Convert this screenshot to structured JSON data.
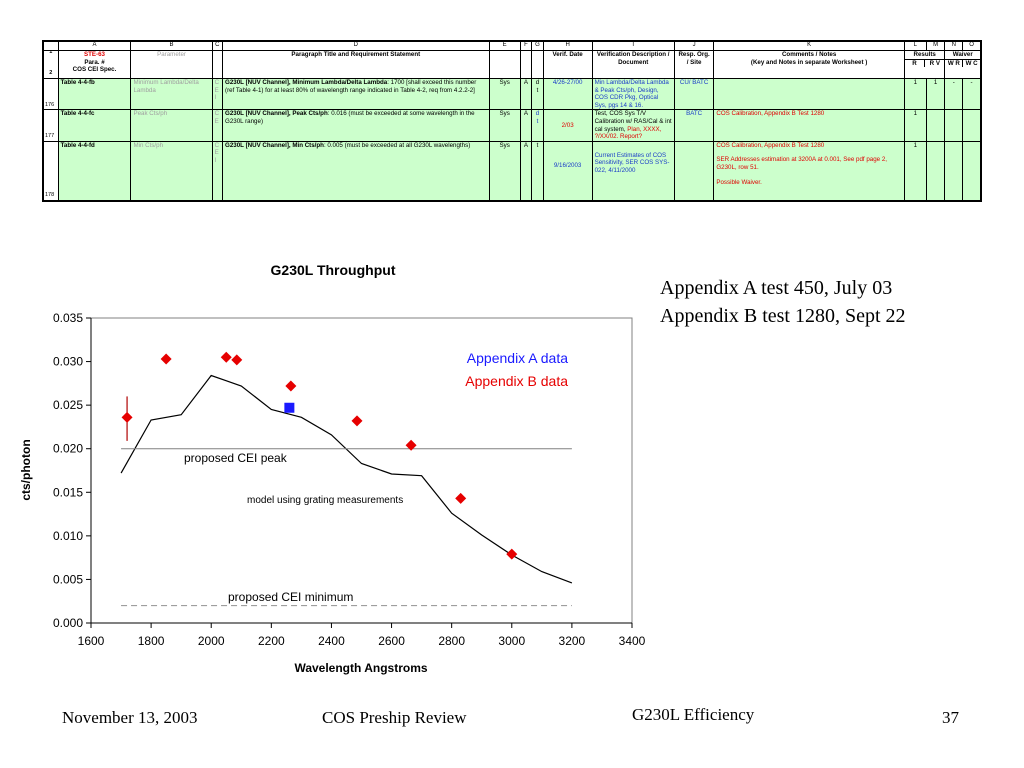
{
  "spreadsheet": {
    "col_letters": [
      "",
      "A",
      "B",
      "C",
      "D",
      "E",
      "F",
      "G",
      "H",
      "I",
      "J",
      "K",
      "L",
      "M",
      "N",
      "O"
    ],
    "row_numbers": [
      "1",
      "2",
      "176",
      "177",
      "178"
    ],
    "header": {
      "a_top": "STE-63",
      "a_rest": [
        "Para. #",
        "COS CEI Spec."
      ],
      "b": "Parameter",
      "d": "Paragraph Title and Requirement Statement",
      "h": "Verif. Date",
      "i": "Verification Description / Document",
      "j": "Resp. Org. / Site",
      "k_line1": "Comments / Notes",
      "k_line2": "(Key and Notes in separate Worksheet )",
      "results": "Results",
      "waiver": "Waiver",
      "l": "R",
      "m": "R V",
      "n": "W R",
      "o": "W C"
    },
    "rows": [
      {
        "para": "Table 4-4-fb",
        "param": "Minimum Lambda/Delta Lambda",
        "c": "C E I",
        "d_bold": "G230L [NUV Channel], Minimum Lambda/Delta Lambda",
        "d_text": ": 1700 [shall exceed this number (ref Table 4-1) for at least 80% of wavelength range indicated in Table 4-2, req from 4.2.2-2]",
        "e": "Sys",
        "f": "A",
        "g": "d t",
        "h": "4/26-27/00",
        "i": "Min Lambda/Delta Lambda & Peak Cts/ph, Design, COS CDR Pkg, Optical Sys, pgs 14 & 16.",
        "j": "CU/ BATC",
        "k": "",
        "l": "1",
        "m": "1",
        "n": "-",
        "o": "-"
      },
      {
        "para": "Table 4-4-fc",
        "param": "Peak Cts/ph",
        "c": "C E",
        "d_bold": "G230L [NUV Channel], Peak Cts/ph",
        "d_text": ": 0.016 (must be exceeded at some wavelength in the G230L range)",
        "e": "Sys",
        "f": "A",
        "g": "d t",
        "h": "2/03",
        "i_black": "Test, COS Sys T/V Calibration w/ RAS/Cal & int cal system,",
        "i_red": "Plan, XXXX, ?/XX/02. Report?",
        "j": "BATC",
        "k": "COS Calibration, Appendix B Test 1280",
        "l": "1",
        "m": "",
        "n": "",
        "o": ""
      },
      {
        "para": "Table 4-4-fd",
        "param": "Min Cts/ph",
        "c": "C E I",
        "d_bold": "G230L [NUV Channel], Min Cts/ph",
        "d_text": ": 0.005 (must be exceeded at all G230L wavelengths)",
        "e": "Sys",
        "f": "A",
        "g": "t",
        "h": "9/16/2003",
        "i": "Current Estimates of COS Sensitivity, SER COS SYS-022, 4/11/2000",
        "j": "",
        "k1": "COS Calibration, Appendix B Test 1280",
        "k2": "SER Addresses estimation at 3200A at 0.001, See pdf page 2, G230L, row 51.",
        "k3": "Possible Waiver.",
        "l": "1",
        "m": "",
        "n": "",
        "o": ""
      }
    ]
  },
  "side_notes": [
    "Appendix A test 450, July 03",
    "Appendix B test 1280, Sept 22"
  ],
  "footer": {
    "date": "November 13, 2003",
    "event": "COS Preship Review",
    "topic": "G230L Efficiency",
    "page": "37"
  },
  "colors": {
    "appendix_a": "#1a1aff",
    "appendix_b": "#e60000",
    "model": "#000000",
    "peak_line": "#808080",
    "plot_bg": "#ffffff",
    "table_fill": "#ccffcc"
  },
  "chart_data": {
    "type": "scatter",
    "title": "G230L Throughput",
    "xlabel": "Wavelength  Angstroms",
    "ylabel": "cts/photon",
    "xlim": [
      1600,
      3400
    ],
    "ylim": [
      0,
      0.035
    ],
    "xticks": [
      1600,
      1800,
      2000,
      2200,
      2400,
      2600,
      2800,
      3000,
      3200,
      3400
    ],
    "xtick_labels": [
      "1600",
      "1800",
      "2000",
      "2200",
      "2400",
      "2600",
      "2800",
      "3000",
      "3200",
      "3400"
    ],
    "yticks": [
      0,
      0.005,
      0.01,
      0.015,
      0.02,
      0.025,
      0.03,
      0.035
    ],
    "ytick_labels": [
      "0.000",
      "0.005",
      "0.010",
      "0.015",
      "0.020",
      "0.025",
      "0.030",
      "0.035"
    ],
    "grid": false,
    "legend_position": "top-right",
    "series": [
      {
        "name": "Appendix A data",
        "kind": "square",
        "points": [
          [
            2260,
            0.0247
          ]
        ]
      },
      {
        "name": "Appendix B data",
        "kind": "diamond",
        "points": [
          [
            1720,
            0.0236
          ],
          [
            1850,
            0.0303
          ],
          [
            2050,
            0.0305
          ],
          [
            2085,
            0.0302
          ],
          [
            2265,
            0.0272
          ],
          [
            2485,
            0.0232
          ],
          [
            2665,
            0.0204
          ],
          [
            2830,
            0.0143
          ],
          [
            3000,
            0.0079
          ]
        ],
        "error_bars": [
          [
            1720,
            0.0209,
            0.026
          ]
        ]
      },
      {
        "kind": "line",
        "points": [
          [
            1700,
            0.0172
          ],
          [
            1800,
            0.0233
          ],
          [
            1900,
            0.0239
          ],
          [
            2000,
            0.0284
          ],
          [
            2100,
            0.0272
          ],
          [
            2200,
            0.0245
          ],
          [
            2300,
            0.0236
          ],
          [
            2400,
            0.0216
          ],
          [
            2500,
            0.0183
          ],
          [
            2600,
            0.0171
          ],
          [
            2700,
            0.0169
          ],
          [
            2800,
            0.0126
          ],
          [
            2900,
            0.0101
          ],
          [
            3000,
            0.0078
          ],
          [
            3100,
            0.0059
          ],
          [
            3200,
            0.0046
          ]
        ]
      },
      {
        "kind": "hline",
        "y": 0.02,
        "range": [
          1700,
          3200
        ]
      },
      {
        "kind": "hline-dashed",
        "y": 0.002,
        "range": [
          1700,
          3200
        ]
      }
    ],
    "annotations": {
      "peak": "proposed CEI peak",
      "model": "model using grating measurements",
      "minimum": "proposed CEI minimum"
    }
  }
}
